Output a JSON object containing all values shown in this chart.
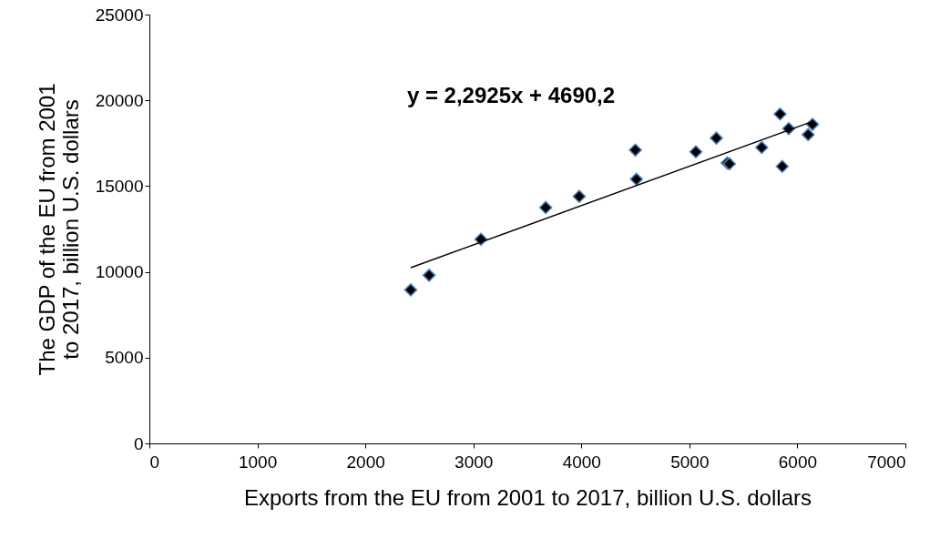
{
  "chart_data": {
    "type": "scatter",
    "xlabel": "Exports from the EU from 2001 to 2017, billion U.S. dollars",
    "ylabel": "The GDP of the EU from 2001 to 2017, billion U.S. dollars",
    "xlim": [
      0,
      7000
    ],
    "xticks": [
      0,
      1000,
      2000,
      3000,
      4000,
      5000,
      6000,
      7000
    ],
    "ylim": [
      0,
      25000
    ],
    "yticks": [
      0,
      5000,
      10000,
      15000,
      20000,
      25000
    ],
    "grid": false,
    "annotations": [
      "y = 2,2925x + 4690,2"
    ],
    "series": [
      {
        "color": "#000000",
        "marker": "diamond",
        "x": [
          2420,
          2590,
          3070,
          3670,
          3980,
          4500,
          4510,
          5060,
          5250,
          5350,
          5370,
          5670,
          5860,
          5840,
          5920,
          6100,
          6140
        ],
        "values": [
          8950,
          9800,
          11900,
          13750,
          14400,
          17100,
          15400,
          17000,
          17800,
          16350,
          16300,
          17250,
          16150,
          19200,
          18350,
          18000,
          18600
        ]
      },
      {
        "type": "line",
        "color": "#000000",
        "x": [
          2420,
          6140
        ],
        "values": [
          10240,
          18770
        ]
      }
    ]
  }
}
